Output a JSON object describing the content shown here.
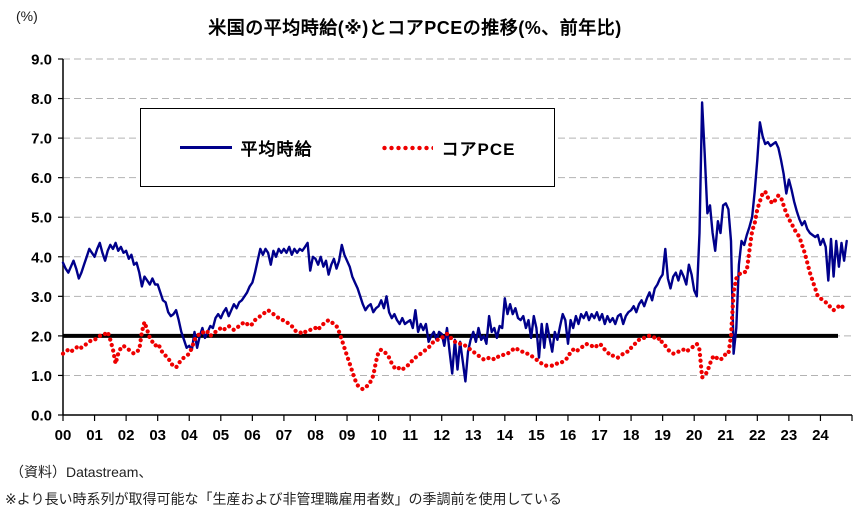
{
  "title": "米国の平均時給(※)とコアPCEの推移(%、前年比)",
  "y_axis": {
    "unit_label": "(%)",
    "tick_labels": [
      "0.0",
      "1.0",
      "2.0",
      "3.0",
      "4.0",
      "5.0",
      "6.0",
      "7.0",
      "8.0",
      "9.0"
    ],
    "min": 0,
    "max": 9
  },
  "x_axis": {
    "labels": [
      "00",
      "01",
      "02",
      "03",
      "04",
      "05",
      "06",
      "07",
      "08",
      "09",
      "10",
      "11",
      "12",
      "13",
      "14",
      "15",
      "16",
      "17",
      "18",
      "19",
      "20",
      "21",
      "22",
      "23",
      "24"
    ]
  },
  "legend": [
    {
      "label": "平均時給",
      "color": "#00008B",
      "style": "solid"
    },
    {
      "label": "コアPCE",
      "color": "#EE0000",
      "style": "dotted"
    }
  ],
  "footer": {
    "source_line": "（資料）Datastream、",
    "note_line": "※より長い時系列が取得可能な「生産および非管理職雇用者数」の季調前を使用している"
  },
  "chart_data": {
    "type": "line",
    "frequency": "monthly",
    "x_start": "2000-01",
    "x_range_years": [
      2000,
      2025
    ],
    "ylim": [
      0,
      9
    ],
    "grid": "horizontal-dashed",
    "legend_position": "top-left-inside",
    "reference_line_y": 2.0,
    "reference_line_color": "#000000",
    "series": [
      {
        "name": "平均時給",
        "color": "#00008B",
        "style": "solid",
        "values": [
          3.85,
          3.7,
          3.6,
          3.75,
          3.9,
          3.7,
          3.45,
          3.6,
          3.8,
          4.0,
          4.2,
          4.1,
          4.0,
          4.2,
          4.35,
          4.1,
          3.9,
          4.15,
          4.3,
          4.2,
          4.35,
          4.15,
          4.25,
          4.1,
          4.15,
          3.95,
          4.05,
          3.8,
          3.85,
          3.6,
          3.25,
          3.5,
          3.4,
          3.3,
          3.45,
          3.3,
          3.3,
          3.1,
          2.9,
          2.85,
          2.6,
          2.5,
          2.55,
          2.65,
          2.4,
          2.1,
          1.9,
          1.7,
          1.75,
          1.65,
          2.1,
          1.7,
          2.0,
          2.2,
          1.95,
          2.1,
          2.25,
          2.2,
          2.45,
          2.55,
          2.45,
          2.6,
          2.7,
          2.5,
          2.65,
          2.8,
          2.7,
          2.85,
          2.9,
          3.0,
          3.1,
          3.25,
          3.35,
          3.6,
          3.9,
          4.2,
          4.05,
          4.2,
          4.1,
          3.8,
          4.15,
          4.0,
          4.2,
          4.1,
          4.2,
          4.1,
          4.25,
          4.05,
          4.2,
          4.1,
          4.2,
          4.15,
          4.25,
          4.35,
          3.65,
          4.0,
          3.95,
          3.8,
          4.0,
          3.75,
          3.9,
          3.55,
          3.8,
          3.95,
          3.7,
          3.9,
          4.3,
          4.05,
          3.9,
          3.75,
          3.5,
          3.35,
          3.2,
          3.0,
          2.8,
          2.65,
          2.75,
          2.8,
          2.6,
          2.7,
          2.75,
          2.9,
          2.7,
          3.0,
          2.6,
          2.45,
          2.55,
          2.4,
          2.3,
          2.45,
          2.3,
          2.35,
          2.4,
          2.2,
          2.65,
          2.1,
          2.3,
          2.15,
          2.3,
          1.85,
          2.0,
          2.1,
          1.9,
          2.1,
          2.05,
          1.75,
          2.2,
          1.6,
          1.05,
          1.9,
          1.15,
          1.85,
          1.35,
          0.85,
          1.6,
          1.9,
          2.1,
          1.85,
          2.2,
          1.9,
          2.0,
          1.8,
          2.5,
          2.1,
          2.2,
          1.95,
          2.25,
          2.2,
          2.95,
          2.55,
          2.8,
          2.55,
          2.7,
          2.45,
          2.4,
          2.5,
          2.2,
          2.4,
          1.95,
          2.5,
          2.2,
          1.45,
          2.3,
          1.7,
          2.3,
          1.95,
          1.6,
          2.1,
          1.9,
          2.25,
          2.55,
          2.4,
          1.8,
          2.4,
          2.2,
          2.5,
          2.3,
          2.55,
          2.45,
          2.6,
          2.4,
          2.55,
          2.45,
          2.6,
          2.4,
          2.55,
          2.3,
          2.5,
          2.35,
          2.45,
          2.3,
          2.5,
          2.55,
          2.3,
          2.5,
          2.6,
          2.65,
          2.75,
          2.6,
          2.8,
          2.9,
          2.75,
          2.95,
          3.1,
          2.9,
          3.2,
          3.3,
          3.45,
          3.55,
          4.2,
          3.45,
          3.2,
          3.5,
          3.6,
          3.4,
          3.65,
          3.5,
          3.3,
          3.8,
          3.55,
          3.15,
          3.0,
          4.6,
          7.9,
          6.6,
          5.1,
          5.3,
          4.6,
          4.15,
          4.9,
          4.6,
          5.3,
          5.35,
          5.2,
          4.4,
          1.55,
          2.2,
          3.8,
          4.4,
          4.3,
          4.55,
          4.75,
          5.0,
          5.65,
          6.45,
          7.4,
          7.05,
          6.85,
          6.9,
          6.8,
          6.85,
          6.9,
          6.75,
          6.45,
          6.1,
          5.6,
          5.95,
          5.7,
          5.4,
          5.15,
          4.95,
          4.8,
          4.9,
          4.7,
          4.6,
          4.55,
          4.5,
          4.55,
          4.3,
          4.45,
          4.25,
          3.4,
          4.45,
          3.5,
          4.4,
          3.75,
          4.35,
          3.9,
          4.4
        ]
      },
      {
        "name": "コアPCE",
        "color": "#EE0000",
        "style": "dotted",
        "values": [
          1.55,
          1.6,
          1.65,
          1.6,
          1.65,
          1.7,
          1.75,
          1.7,
          1.75,
          1.8,
          1.85,
          1.9,
          1.9,
          1.95,
          2.0,
          2.0,
          2.05,
          2.1,
          1.9,
          1.65,
          1.3,
          1.55,
          1.7,
          1.75,
          1.7,
          1.65,
          1.6,
          1.55,
          1.6,
          1.65,
          2.1,
          2.35,
          2.15,
          1.95,
          1.85,
          1.75,
          1.8,
          1.7,
          1.55,
          1.5,
          1.45,
          1.3,
          1.25,
          1.2,
          1.3,
          1.4,
          1.45,
          1.5,
          1.55,
          1.7,
          1.9,
          2.0,
          2.05,
          2.1,
          2.05,
          2.1,
          2.0,
          2.05,
          2.1,
          2.15,
          2.2,
          2.15,
          2.2,
          2.25,
          2.2,
          2.15,
          2.2,
          2.25,
          2.3,
          2.35,
          2.3,
          2.25,
          2.3,
          2.4,
          2.45,
          2.5,
          2.55,
          2.6,
          2.65,
          2.6,
          2.55,
          2.5,
          2.45,
          2.4,
          2.4,
          2.35,
          2.3,
          2.25,
          2.15,
          2.1,
          2.1,
          2.05,
          2.1,
          2.1,
          2.15,
          2.2,
          2.2,
          2.15,
          2.25,
          2.3,
          2.35,
          2.4,
          2.35,
          2.3,
          2.25,
          2.1,
          1.9,
          1.7,
          1.5,
          1.3,
          1.1,
          0.9,
          0.75,
          0.7,
          0.65,
          0.7,
          0.75,
          0.85,
          1.0,
          1.35,
          1.6,
          1.65,
          1.6,
          1.55,
          1.45,
          1.3,
          1.2,
          1.15,
          1.2,
          1.15,
          1.2,
          1.25,
          1.3,
          1.4,
          1.45,
          1.5,
          1.55,
          1.6,
          1.65,
          1.7,
          1.8,
          1.85,
          1.9,
          1.9,
          1.95,
          2.0,
          2.05,
          2.0,
          1.9,
          1.85,
          1.85,
          1.8,
          1.8,
          1.75,
          1.7,
          1.65,
          1.6,
          1.55,
          1.5,
          1.45,
          1.4,
          1.4,
          1.45,
          1.45,
          1.4,
          1.45,
          1.5,
          1.5,
          1.55,
          1.55,
          1.6,
          1.65,
          1.7,
          1.65,
          1.6,
          1.6,
          1.55,
          1.55,
          1.5,
          1.45,
          1.4,
          1.35,
          1.3,
          1.25,
          1.25,
          1.25,
          1.25,
          1.3,
          1.3,
          1.3,
          1.35,
          1.4,
          1.45,
          1.6,
          1.65,
          1.6,
          1.65,
          1.7,
          1.75,
          1.8,
          1.75,
          1.75,
          1.7,
          1.75,
          1.8,
          1.75,
          1.65,
          1.6,
          1.5,
          1.5,
          1.5,
          1.45,
          1.5,
          1.55,
          1.6,
          1.6,
          1.7,
          1.75,
          1.85,
          1.9,
          1.95,
          1.95,
          2.0,
          2.0,
          2.0,
          1.95,
          1.9,
          1.95,
          1.8,
          1.75,
          1.65,
          1.6,
          1.55,
          1.6,
          1.6,
          1.65,
          1.65,
          1.6,
          1.65,
          1.7,
          1.75,
          1.8,
          1.65,
          0.95,
          1.0,
          1.1,
          1.3,
          1.45,
          1.5,
          1.4,
          1.4,
          1.45,
          1.55,
          1.55,
          2.0,
          3.1,
          3.45,
          3.55,
          3.6,
          3.6,
          3.65,
          4.15,
          4.65,
          4.85,
          5.2,
          5.4,
          5.6,
          5.65,
          5.5,
          5.4,
          5.35,
          5.45,
          5.55,
          5.5,
          5.3,
          5.1,
          4.95,
          4.85,
          4.7,
          4.6,
          4.5,
          4.3,
          4.1,
          3.85,
          3.6,
          3.4,
          3.2,
          3.0,
          2.95,
          2.9,
          2.85,
          2.8,
          2.7,
          2.65,
          2.7,
          2.75,
          2.7,
          2.8
        ]
      }
    ]
  }
}
